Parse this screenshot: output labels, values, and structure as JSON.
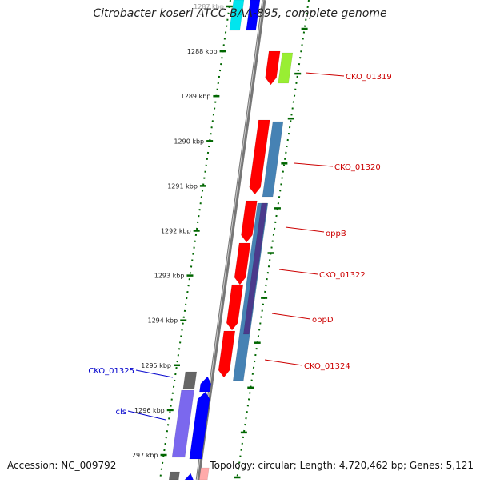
{
  "title": "Citrobacter koseri ATCC BAA-895, complete genome",
  "footer": {
    "accession": "Accession: NC_009792",
    "topology": "Topology: circular; Length: 4,720,462 bp; Genes: 5,121"
  },
  "ticks": [
    {
      "label": "1287 kbp",
      "partial": true
    },
    {
      "label": "1288 kbp"
    },
    {
      "label": "1289 kbp"
    },
    {
      "label": "1290 kbp"
    },
    {
      "label": "1291 kbp"
    },
    {
      "label": "1292 kbp"
    },
    {
      "label": "1293 kbp"
    },
    {
      "label": "1294 kbp"
    },
    {
      "label": "1295 kbp"
    },
    {
      "label": "1296 kbp"
    },
    {
      "label": "1297 kbp"
    }
  ],
  "genes": [
    {
      "name": "CKO_01319",
      "label_color": "#cc0000"
    },
    {
      "name": "CKO_01320",
      "label_color": "#cc0000"
    },
    {
      "name": "oppB",
      "label_color": "#cc0000"
    },
    {
      "name": "CKO_01322",
      "label_color": "#cc0000"
    },
    {
      "name": "oppD",
      "label_color": "#cc0000"
    },
    {
      "name": "CKO_01324",
      "label_color": "#cc0000"
    },
    {
      "name": "CKO_01325",
      "label_color": "#0000cc"
    },
    {
      "name": "cls",
      "label_color": "#0000cc"
    }
  ],
  "colors": {
    "cds_forward": "#ff0000",
    "cds_reverse": "#0000ff",
    "rna_green": "#99ee33",
    "steelblue": "#4682b4",
    "slate": "#6a5acd",
    "gray": "#666666",
    "tick_green": "#006600",
    "backbone": "#888888"
  }
}
